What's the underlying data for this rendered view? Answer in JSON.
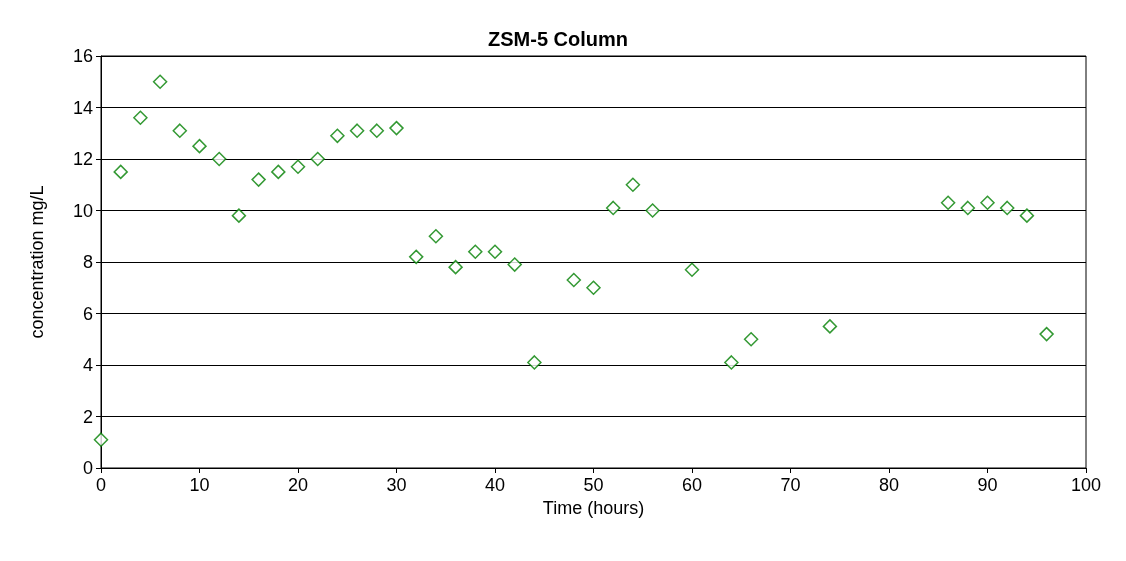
{
  "chart_data": {
    "type": "scatter",
    "title": "ZSM-5 Column",
    "xlabel": "Time (hours)",
    "ylabel": "concentration mg/L",
    "x": [
      0,
      2,
      4,
      6,
      8,
      10,
      12,
      14,
      16,
      18,
      20,
      22,
      24,
      26,
      28,
      30,
      32,
      34,
      36,
      38,
      40,
      42,
      44,
      48,
      50,
      52,
      54,
      56,
      60,
      64,
      66,
      74,
      86,
      88,
      90,
      92,
      94,
      96
    ],
    "values": [
      1.1,
      11.5,
      13.6,
      15.0,
      13.1,
      12.5,
      12.0,
      9.8,
      11.2,
      11.5,
      11.7,
      12.0,
      12.9,
      13.1,
      13.1,
      13.2,
      8.2,
      9.0,
      7.8,
      8.4,
      8.4,
      7.9,
      4.1,
      7.3,
      7.0,
      10.1,
      11.0,
      10.0,
      7.7,
      4.1,
      5.0,
      5.5,
      10.3,
      10.1,
      10.3,
      10.1,
      9.8,
      5.2
    ],
    "color": "#008000",
    "marker": "diamond",
    "grid": "y",
    "xlim": [
      0,
      100
    ],
    "xticks": [
      0,
      10,
      20,
      30,
      40,
      50,
      60,
      70,
      80,
      90,
      100
    ],
    "ylim": [
      0,
      16
    ],
    "yticks": [
      0,
      2,
      4,
      6,
      8,
      10,
      12,
      14,
      16
    ]
  }
}
